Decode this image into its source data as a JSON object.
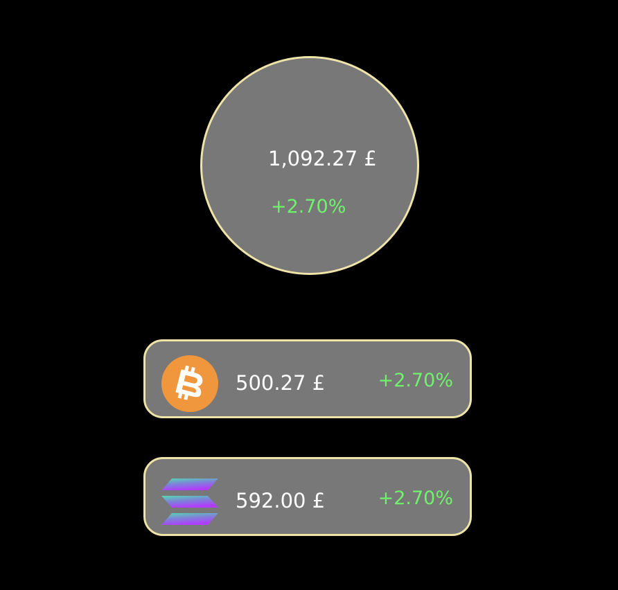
{
  "portfolio": {
    "total_value": "1,092.27 £",
    "total_change": "+2.70%"
  },
  "assets": [
    {
      "icon": "bitcoin-icon",
      "value": "500.27 £",
      "change": "+2.70%"
    },
    {
      "icon": "solana-icon",
      "value": "592.00 £",
      "change": "+2.70%"
    }
  ],
  "colors": {
    "background": "#000000",
    "card": "#787878",
    "border": "#efe4a8",
    "positive": "#6ff36c",
    "text": "#ffffff",
    "bitcoin": "#f0963c"
  }
}
